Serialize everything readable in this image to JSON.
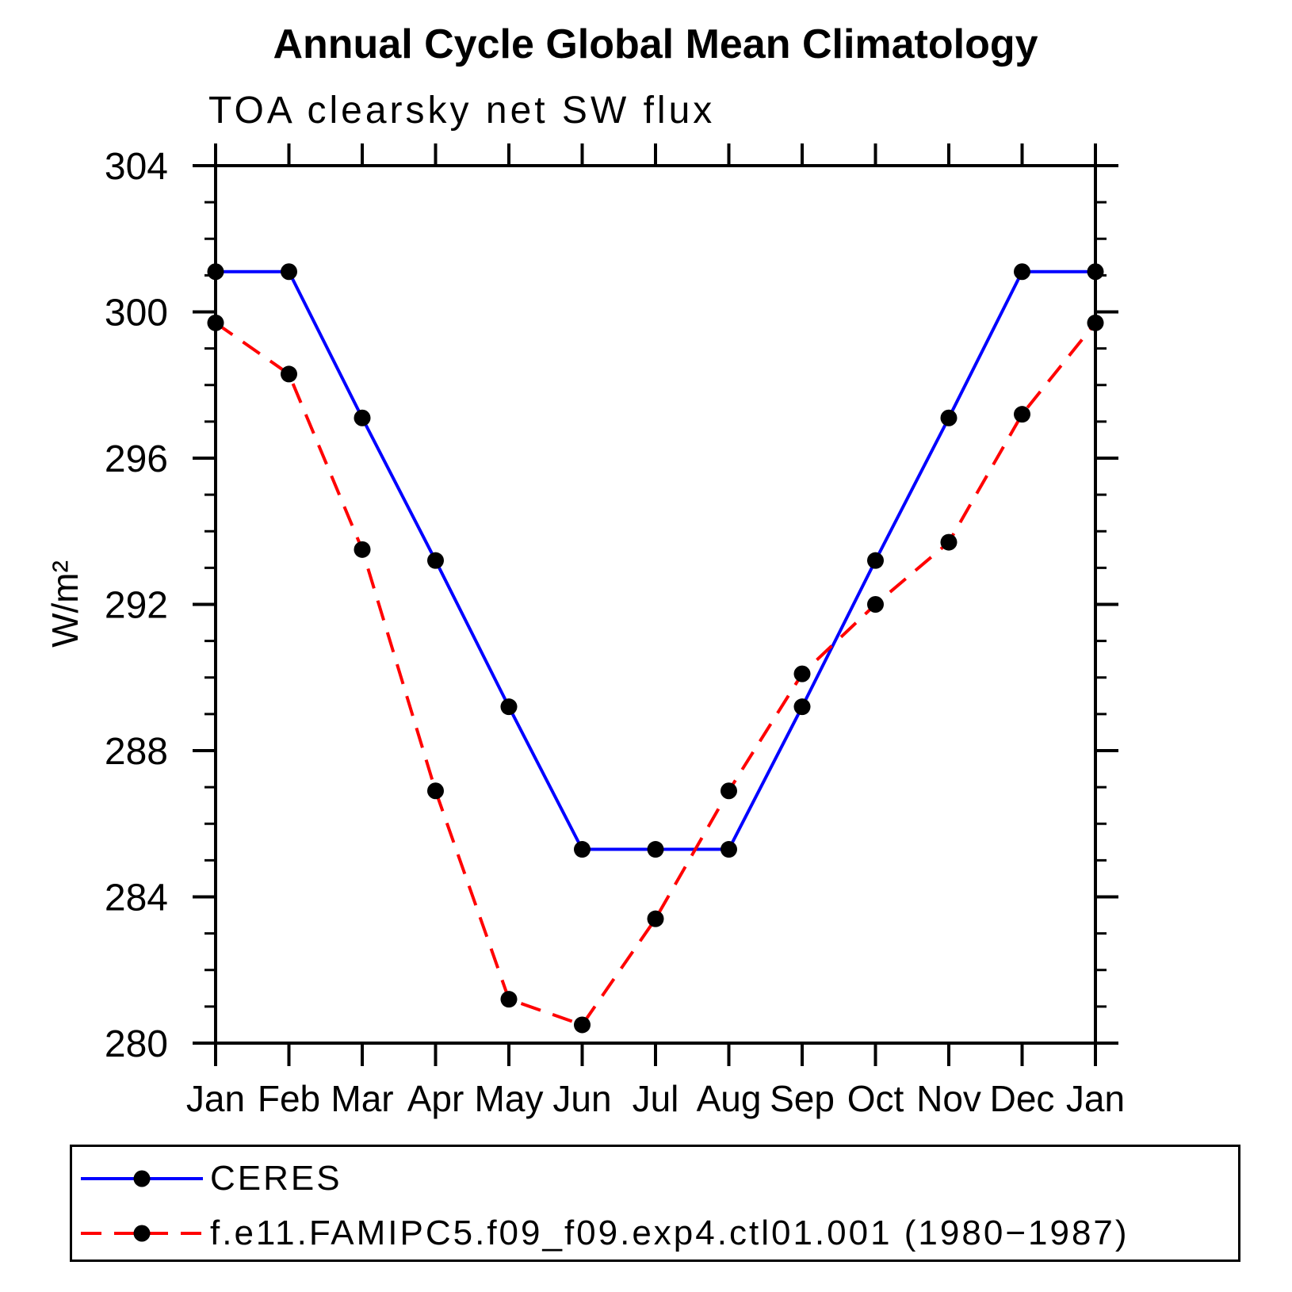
{
  "chart_data": {
    "type": "line",
    "title": "Annual Cycle Global Mean Climatology",
    "subtitle": "TOA clearsky net SW flux",
    "ylabel": "W/m²",
    "ylim": [
      280,
      304
    ],
    "ytick_major_interval": 4,
    "ytick_minor_interval": 1,
    "grid": "off",
    "legend_position": "bottom-left-box",
    "frame_color": "#000000",
    "background_color": "#ffffff",
    "categories": [
      "Jan",
      "Feb",
      "Mar",
      "Apr",
      "May",
      "Jun",
      "Jul",
      "Aug",
      "Sep",
      "Oct",
      "Nov",
      "Dec",
      "Jan"
    ],
    "series": [
      {
        "name": "CERES",
        "color": "#0000ff",
        "line_style": "solid",
        "marker": "filled-circle",
        "marker_color": "#000000",
        "values": [
          301.1,
          301.1,
          297.1,
          293.2,
          289.2,
          285.3,
          285.3,
          285.3,
          289.2,
          293.2,
          297.1,
          301.1,
          301.1
        ]
      },
      {
        "name": "f.e11.FAMIPC5.f09_f09.exp4.ctl01.001 (1980−1987)",
        "color": "#ff0000",
        "line_style": "dashed",
        "marker": "filled-circle",
        "marker_color": "#000000",
        "values": [
          299.7,
          298.3,
          293.5,
          286.9,
          281.2,
          280.5,
          283.4,
          286.9,
          290.1,
          292.0,
          293.7,
          297.2,
          299.7
        ]
      }
    ]
  }
}
